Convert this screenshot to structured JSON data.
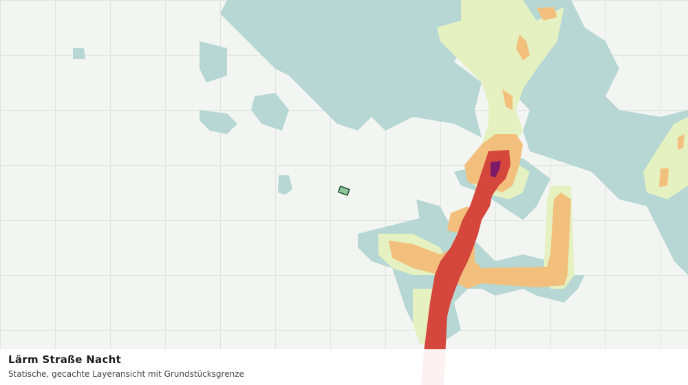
{
  "legend_panel": {
    "title": "Lärm Straße Nacht",
    "subtitle": "Statische, gecachte Layeransicht mit Grundstücksgrenze"
  }
}
